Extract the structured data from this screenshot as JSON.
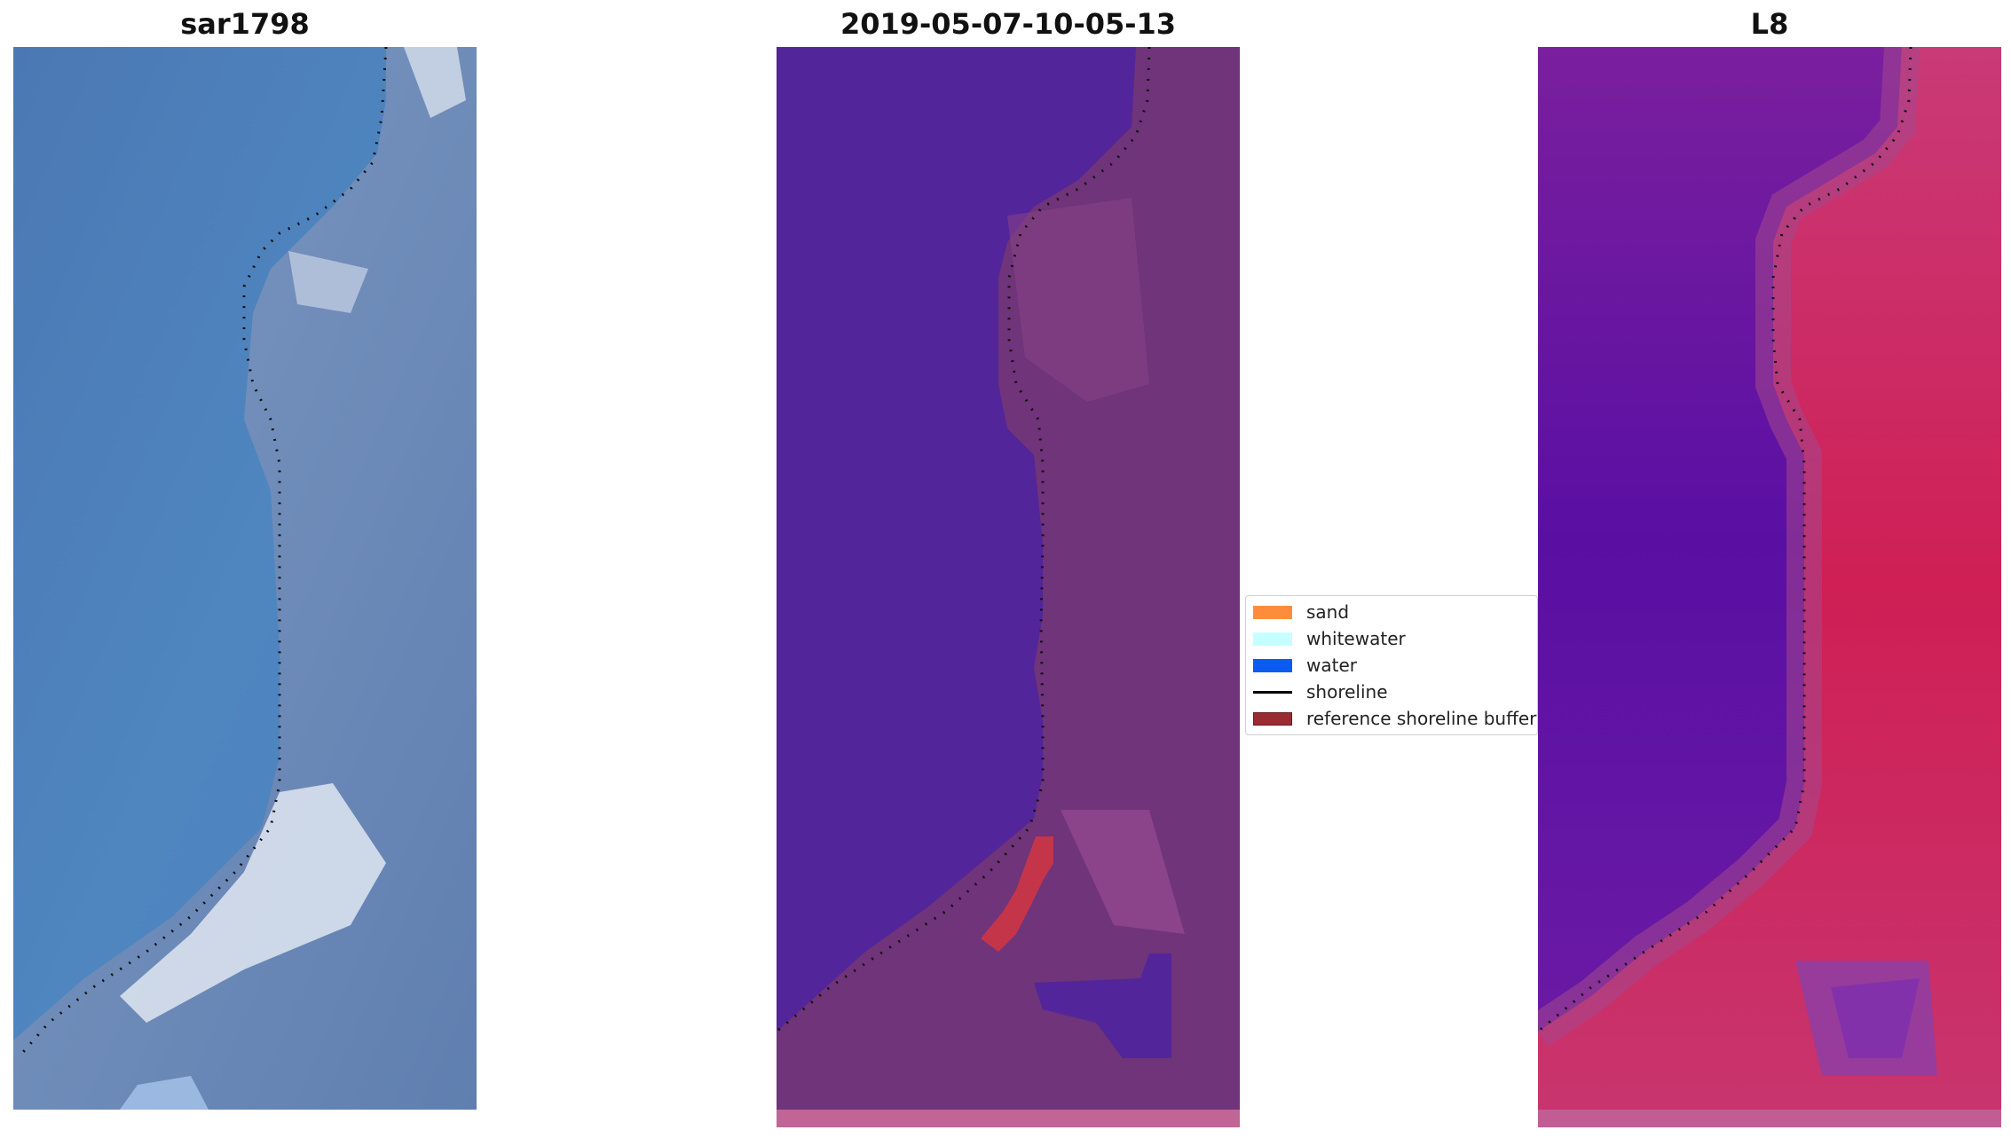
{
  "panels": [
    {
      "title": "sar1798"
    },
    {
      "title": "2019-05-07-10-05-13"
    },
    {
      "title": "L8"
    }
  ],
  "legend": {
    "items": [
      {
        "label": "sand",
        "color": "#ff8c3a",
        "kind": "patch"
      },
      {
        "label": "whitewater",
        "color": "#c6ffff",
        "kind": "patch"
      },
      {
        "label": "water",
        "color": "#0a5bf0",
        "kind": "patch"
      },
      {
        "label": "shoreline",
        "color": "#000000",
        "kind": "line"
      },
      {
        "label": "reference shoreline buffer",
        "color": "#9b2b33",
        "kind": "patch"
      }
    ]
  }
}
